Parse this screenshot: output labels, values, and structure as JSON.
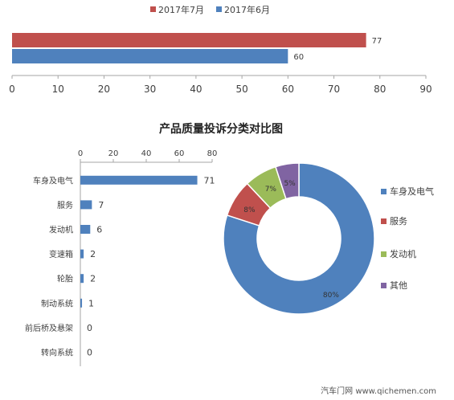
{
  "colors": {
    "july": "#c0504d",
    "june": "#4f81bd",
    "axis": "#a6a6a6",
    "text": "#404040",
    "donut": [
      "#4f81bd",
      "#c0504d",
      "#9bbb59",
      "#8064a2"
    ]
  },
  "watermark": "汽车门网 www.qichemen.com",
  "chart_data": [
    {
      "type": "bar",
      "orientation": "horizontal",
      "series": [
        {
          "name": "2017年7月",
          "values": [
            77
          ],
          "color": "#c0504d"
        },
        {
          "name": "2017年6月",
          "values": [
            60
          ],
          "color": "#4f81bd"
        }
      ],
      "xlim": [
        0,
        90
      ],
      "xticks": [
        "0",
        "10",
        "20",
        "30",
        "40",
        "50",
        "60",
        "70",
        "80",
        "90"
      ],
      "legend": "top",
      "grid": false
    },
    {
      "type": "bar",
      "orientation": "horizontal",
      "title": "产品质量投诉分类对比图",
      "categories": [
        "车身及电气",
        "服务",
        "发动机",
        "变速箱",
        "轮胎",
        "制动系统",
        "前后桥及悬架",
        "转向系统"
      ],
      "values": [
        71,
        7,
        6,
        2,
        2,
        1,
        0,
        0
      ],
      "xlim": [
        0,
        80
      ],
      "xticks": [
        "0",
        "20",
        "40",
        "60",
        "80"
      ],
      "axis_position": "top",
      "color": "#4f81bd",
      "grid": false
    },
    {
      "type": "pie",
      "style": "donut",
      "labels": [
        "车身及电气",
        "服务",
        "发动机",
        "其他"
      ],
      "values": [
        80,
        8,
        7,
        5
      ],
      "value_labels": [
        "80%",
        "8%",
        "7%",
        "5%"
      ],
      "colors": [
        "#4f81bd",
        "#c0504d",
        "#9bbb59",
        "#8064a2"
      ],
      "legend": "right"
    }
  ]
}
